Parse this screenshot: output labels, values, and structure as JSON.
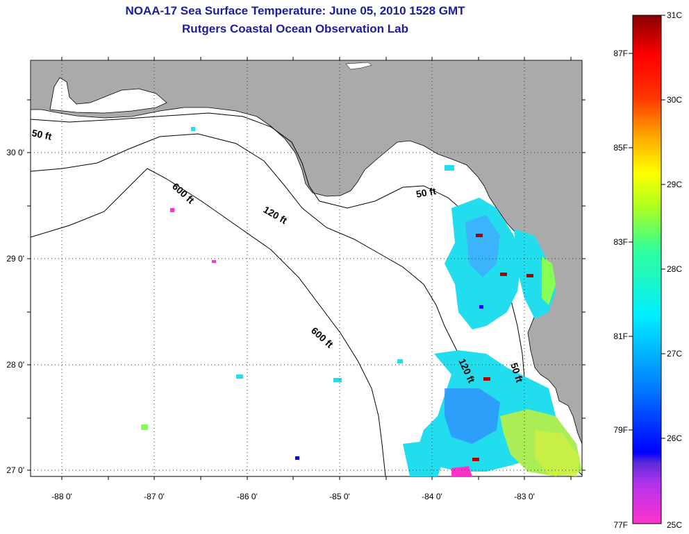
{
  "title": "NOAA-17 Sea Surface Temperature:  June 05, 2010 1528 GMT",
  "subtitle": "Rutgers Coastal Ocean Observation Lab",
  "map": {
    "lon_labels": [
      "-88 0'",
      "-87 0'",
      "-86 0'",
      "-85 0'",
      "-84 0'",
      "-83 0'"
    ],
    "lat_labels": [
      "30 0'",
      "29 0'",
      "28 0'",
      "27 0'"
    ],
    "depth_labels": {
      "d50_a": "50 ft",
      "d50_b": "50 ft",
      "d50_c": "50 ft",
      "d120_a": "120 ft",
      "d120_b": "120 ft",
      "d600_a": "600 ft",
      "d600_b": "600 ft"
    },
    "colors": {
      "land": "#aaaaaa",
      "ocean": "#ffffff",
      "grid": "#000000"
    }
  },
  "colorbar": {
    "fahrenheit": [
      "87F",
      "85F",
      "83F",
      "81F",
      "79F",
      "77F"
    ],
    "celsius": [
      "31C",
      "30C",
      "29C",
      "28C",
      "27C",
      "26C",
      "25C"
    ]
  }
}
